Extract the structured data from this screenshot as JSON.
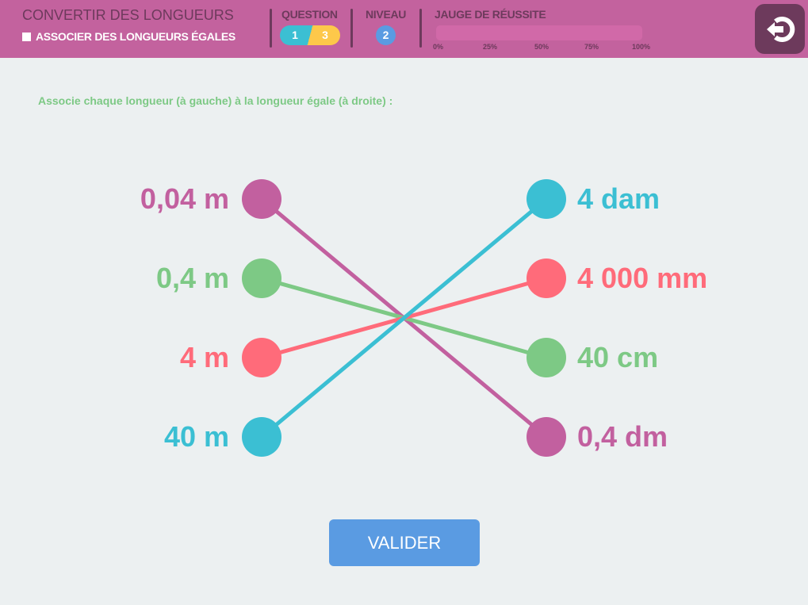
{
  "header": {
    "title": "CONVERTIR DES LONGUEURS",
    "subtitle": "ASSOCIER DES LONGUEURS ÉGALES",
    "question_label": "QUESTION",
    "question_current": "1",
    "question_total": "3",
    "level_label": "NIVEAU",
    "level": "2",
    "gauge_label": "JAUGE DE RÉUSSITE",
    "gauge_value_percent": 0,
    "gauge_ticks": [
      "0%",
      "25%",
      "50%",
      "75%",
      "100%"
    ],
    "exit_icon": "exit-icon"
  },
  "instruction": "Associe chaque longueur (à gauche) à la longueur égale (à droite) :",
  "colors": {
    "pink": "#c2609f",
    "green": "#7dc985",
    "red": "#ff6b7a",
    "cyan": "#3bbfd3",
    "header": "#c3629e",
    "button": "#5a9be2"
  },
  "left": [
    {
      "label": "0,04 m",
      "color": "#c2609f"
    },
    {
      "label": "0,4 m",
      "color": "#7dc985"
    },
    {
      "label": "4 m",
      "color": "#ff6b7a"
    },
    {
      "label": "40 m",
      "color": "#3bbfd3"
    }
  ],
  "right": [
    {
      "label": "4 dam",
      "color": "#3bbfd3"
    },
    {
      "label": "4 000 mm",
      "color": "#ff6b7a"
    },
    {
      "label": "40 cm",
      "color": "#7dc985"
    },
    {
      "label": "0,4 dm",
      "color": "#c2609f"
    }
  ],
  "links": [
    [
      0,
      3
    ],
    [
      1,
      2
    ],
    [
      2,
      1
    ],
    [
      3,
      0
    ]
  ],
  "validate_label": "VALIDER"
}
